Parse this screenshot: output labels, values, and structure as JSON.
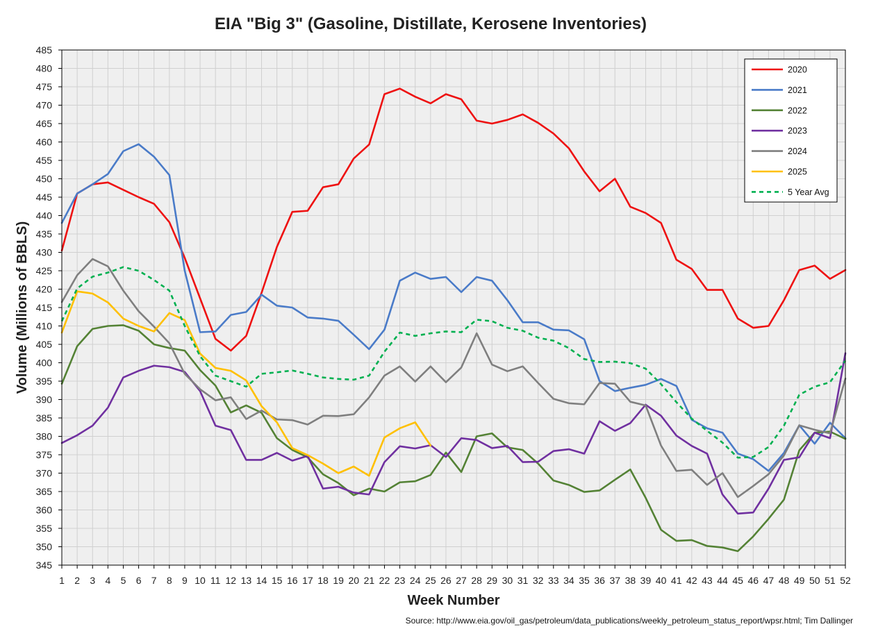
{
  "chart_data": {
    "type": "line",
    "title": "EIA \"Big 3\" (Gasoline, Distillate, Kerosene Inventories)",
    "xlabel": "Week Number",
    "ylabel": "Volume (Millions of BBLS)",
    "source": "Source: http://www.eia.gov/oil_gas/petroleum/data_publications/weekly_petroleum_status_report/wpsr.html; Tim Dallinger",
    "xlim": [
      1,
      52
    ],
    "ylim": [
      345,
      485
    ],
    "ytick_step": 5,
    "grid": true,
    "legend_position": "top-right",
    "series": [
      {
        "name": "2020",
        "color": "#ee1111",
        "dashed": false,
        "values": [
          430.5,
          446,
          448.5,
          449,
          447,
          445,
          443.2,
          438.2,
          428.5,
          417.5,
          406.5,
          403.3,
          407.3,
          419,
          431.5,
          441,
          441.3,
          447.7,
          448.5,
          455.5,
          459.3,
          473,
          474.5,
          472.3,
          470.5,
          473,
          471.6,
          465.8,
          465,
          466,
          467.5,
          465.2,
          462.3,
          458.3,
          452,
          446.6,
          450,
          442.4,
          440.7,
          438,
          428,
          425.5,
          419.8,
          419.8,
          412,
          409.5,
          410,
          417,
          425.2,
          426.4,
          422.8,
          425.2
        ]
      },
      {
        "name": "2021",
        "color": "#4a7bc8",
        "dashed": false,
        "values": [
          438,
          446,
          448.5,
          451.3,
          457.5,
          459.4,
          456,
          451,
          425,
          408.3,
          408.5,
          413,
          413.8,
          418.5,
          415.5,
          415,
          412.3,
          412,
          411.4,
          407.6,
          403.7,
          409,
          422.3,
          424.5,
          422.8,
          423.3,
          419.2,
          423.3,
          422.3,
          417,
          411,
          411,
          409,
          408.8,
          406.4,
          395,
          392.3,
          393.2,
          394,
          395.6,
          393.7,
          384.5,
          382.2,
          381,
          375.3,
          373.8,
          370.6,
          375.5,
          383,
          378,
          383.7,
          379.5
        ]
      },
      {
        "name": "2022",
        "color": "#548235",
        "dashed": false,
        "values": [
          394.3,
          404.5,
          409.2,
          410,
          410.2,
          408.7,
          405,
          404,
          403.3,
          398,
          393.8,
          386.5,
          388.4,
          386.4,
          379.5,
          376.3,
          374.3,
          369.7,
          367.3,
          364,
          365.8,
          365,
          367.5,
          367.8,
          369.5,
          375.6,
          370.3,
          380,
          380.8,
          377,
          376.3,
          372.6,
          368,
          366.8,
          364.9,
          365.3,
          368.2,
          371,
          363.3,
          354.6,
          351.6,
          351.8,
          350.2,
          349.8,
          348.8,
          352.8,
          357.6,
          362.8,
          376.2,
          381,
          381.3,
          379.3
        ]
      },
      {
        "name": "2023",
        "color": "#7030a0",
        "dashed": false,
        "values": [
          378.2,
          380.3,
          382.9,
          387.8,
          396,
          397.8,
          399.2,
          398.8,
          397.5,
          392.3,
          382.9,
          381.7,
          373.6,
          373.6,
          375.5,
          373.4,
          374.7,
          365.8,
          366.3,
          364.7,
          364.2,
          373,
          377.3,
          376.7,
          377.6,
          374.4,
          379.5,
          379,
          376.8,
          377.4,
          373,
          373.1,
          376,
          376.5,
          375.3,
          384.1,
          381.5,
          383.6,
          388.6,
          385.6,
          380.2,
          377.4,
          375.3,
          364.2,
          359,
          359.3,
          365.8,
          373.6,
          374.3,
          381,
          379.5,
          402.6
        ]
      },
      {
        "name": "2024",
        "color": "#7f7f7f",
        "dashed": false,
        "values": [
          416.5,
          423.8,
          428.2,
          426.2,
          419.6,
          414,
          409.8,
          405.3,
          397,
          392.8,
          389.8,
          390.6,
          384.7,
          387,
          384.6,
          384.4,
          383.2,
          385.6,
          385.5,
          386,
          390.6,
          396.5,
          399,
          394.9,
          399,
          394.7,
          398.7,
          408,
          399.5,
          397.7,
          399,
          394.5,
          390.2,
          389,
          388.7,
          394.5,
          394.3,
          389.4,
          388.4,
          377.5,
          370.6,
          370.9,
          366.8,
          370,
          363.5,
          366.5,
          369.7,
          374.8,
          383,
          381.8,
          380.8,
          395.7
        ]
      },
      {
        "name": "2025",
        "color": "#ffc000",
        "dashed": false,
        "values": [
          408.2,
          419.4,
          418.8,
          416.4,
          412,
          410,
          408.5,
          413.5,
          411.6,
          402.5,
          398.6,
          397.8,
          395.2,
          388.2,
          383.8,
          376.8,
          374.9,
          372.6,
          370,
          371.8,
          369.3,
          379.7,
          382.2,
          383.8,
          377.5
        ]
      },
      {
        "name": "5 Year Avg",
        "color": "#00b050",
        "dashed": true,
        "values": [
          411.3,
          420.2,
          423.4,
          424.5,
          426,
          425,
          422.5,
          419.6,
          410,
          401.8,
          396.5,
          395,
          393.5,
          397,
          397.4,
          397.9,
          397,
          396,
          395.6,
          395.4,
          396.5,
          403,
          408.2,
          407.3,
          408,
          408.5,
          408.3,
          411.7,
          411.3,
          409.5,
          408.7,
          406.8,
          406,
          404,
          401,
          400.2,
          400.3,
          399.9,
          398.4,
          394.2,
          389.3,
          384.8,
          381.5,
          378.3,
          374.2,
          374.4,
          377.1,
          382.9,
          391.3,
          393.5,
          394.7,
          400.6
        ]
      }
    ]
  }
}
